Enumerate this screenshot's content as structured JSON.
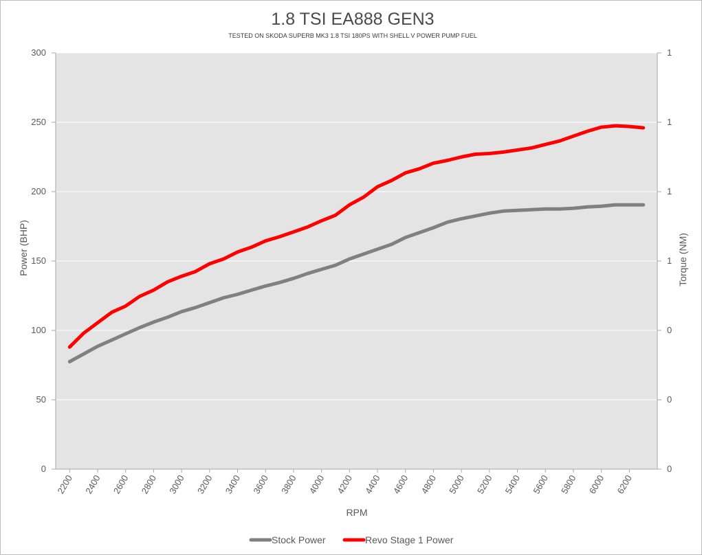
{
  "chart_data": {
    "type": "line",
    "title": "1.8 TSI EA888 GEN3",
    "subtitle": "TESTED ON SKODA SUPERB MK3 1.8 TSI 180PS WITH SHELL V POWER PUMP FUEL",
    "xlabel": "RPM",
    "ylabel": "Power (BHP)",
    "y2label": "Torque (NM)",
    "x": [
      2200,
      2300,
      2400,
      2500,
      2600,
      2700,
      2800,
      2900,
      3000,
      3100,
      3200,
      3300,
      3400,
      3500,
      3600,
      3700,
      3800,
      3900,
      4000,
      4100,
      4200,
      4300,
      4400,
      4500,
      4600,
      4700,
      4800,
      4900,
      5000,
      5100,
      5200,
      5300,
      5400,
      5500,
      5600,
      5700,
      5800,
      5900,
      6000,
      6100,
      6200,
      6300
    ],
    "x_ticks": [
      "2200",
      "2400",
      "2600",
      "2800",
      "3000",
      "3200",
      "3400",
      "3600",
      "3800",
      "4000",
      "4200",
      "4400",
      "4600",
      "4800",
      "5000",
      "5200",
      "5400",
      "5600",
      "5800",
      "6000",
      "6200"
    ],
    "ylim": [
      0,
      300
    ],
    "y_ticks": [
      "0",
      "50",
      "100",
      "150",
      "200",
      "250",
      "300"
    ],
    "y2_ticks": [
      "0",
      "0",
      "0",
      "1",
      "1",
      "1",
      "1"
    ],
    "grid": true,
    "plot_background": "#e4e4e4",
    "legend_position": "bottom",
    "series": [
      {
        "name": "Stock Power",
        "color": "#808080",
        "values": [
          77.5,
          83,
          88.5,
          93,
          97.5,
          102,
          106,
          109.5,
          113.5,
          116.5,
          120,
          123.5,
          126,
          129,
          132,
          134.5,
          137.5,
          141,
          144,
          147,
          151.5,
          155,
          158.5,
          162,
          167,
          170.5,
          174,
          178,
          180.5,
          182.5,
          184.5,
          186,
          186.5,
          187,
          187.5,
          187.5,
          188,
          189,
          189.5,
          190.5,
          190.5,
          190.5
        ]
      },
      {
        "name": "Revo Stage 1 Power",
        "color": "#ff0000",
        "values": [
          88,
          98,
          105.5,
          113,
          117.5,
          124.5,
          129,
          135,
          139,
          142.5,
          148,
          151.5,
          156.5,
          160,
          164.5,
          167.5,
          171,
          174.5,
          179,
          183,
          190.5,
          196,
          203.5,
          208,
          213.5,
          216.5,
          220.5,
          222.5,
          225,
          227,
          227.5,
          228.5,
          230,
          231.5,
          234,
          236.5,
          240,
          243.5,
          246.5,
          247.5,
          247,
          246
        ]
      }
    ]
  }
}
